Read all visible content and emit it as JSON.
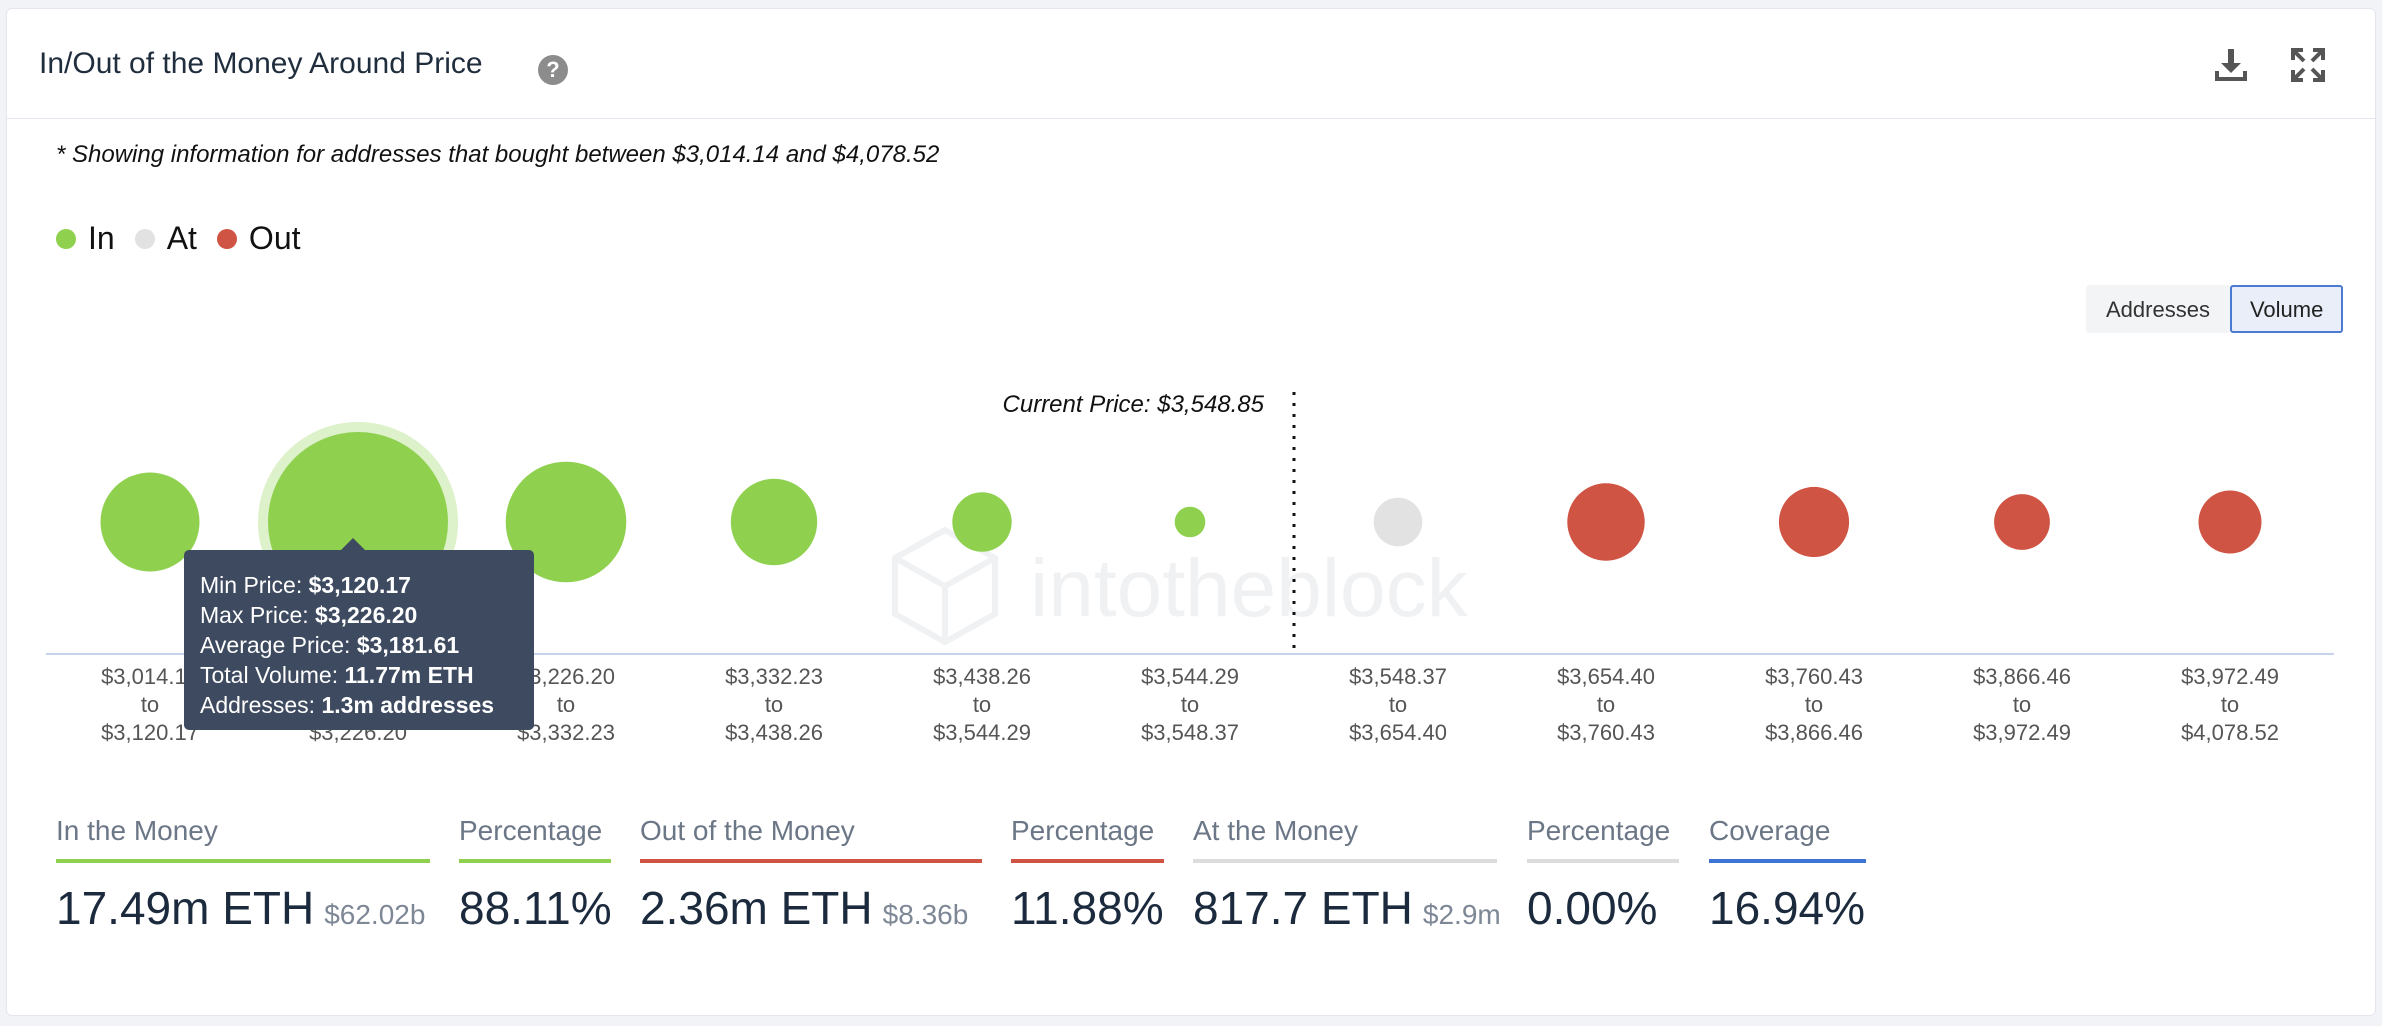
{
  "header": {
    "title": "In/Out of the Money Around Price",
    "help_icon": "question-circle-icon",
    "download_icon": "download-icon",
    "fullscreen_icon": "fullscreen-icon"
  },
  "note": "* Showing information for addresses that bought between $3,014.14 and $4,078.52",
  "legend": [
    {
      "label": "In",
      "color": "#8fd14f"
    },
    {
      "label": "At",
      "color": "#e2e2e2"
    },
    {
      "label": "Out",
      "color": "#cf5443"
    }
  ],
  "toggle": {
    "addresses": "Addresses",
    "volume": "Volume",
    "active": "Volume"
  },
  "watermark": "intotheblock",
  "chart_data": {
    "type": "bubble",
    "current_price_label": "Current Price: $3,548.85",
    "current_price": 3548.85,
    "categories": [
      {
        "from": "$3,014.14",
        "to": "$3,120.17",
        "status": "in",
        "size": 0.55
      },
      {
        "from": "$3,120.17",
        "to": "$3,226.20",
        "status": "in",
        "size": 1.0
      },
      {
        "from": "$3,226.20",
        "to": "$3,332.23",
        "status": "in",
        "size": 0.67
      },
      {
        "from": "$3,332.23",
        "to": "$3,438.26",
        "status": "in",
        "size": 0.48
      },
      {
        "from": "$3,438.26",
        "to": "$3,544.29",
        "status": "in",
        "size": 0.33
      },
      {
        "from": "$3,544.29",
        "to": "$3,548.37",
        "status": "in",
        "size": 0.17
      },
      {
        "from": "$3,548.37",
        "to": "$3,654.40",
        "status": "at",
        "size": 0.27
      },
      {
        "from": "$3,654.40",
        "to": "$3,760.43",
        "status": "out",
        "size": 0.43
      },
      {
        "from": "$3,760.43",
        "to": "$3,866.46",
        "status": "out",
        "size": 0.39
      },
      {
        "from": "$3,866.46",
        "to": "$3,972.49",
        "status": "out",
        "size": 0.31
      },
      {
        "from": "$3,972.49",
        "to": "$4,078.52",
        "status": "out",
        "size": 0.35
      }
    ],
    "to_word": "to",
    "tooltip": {
      "bucket_index": 1,
      "min_label": "Min Price:",
      "min_value": "$3,120.17",
      "max_label": "Max Price:",
      "max_value": "$3,226.20",
      "avg_label": "Average Price:",
      "avg_value": "$3,181.61",
      "vol_label": "Total Volume:",
      "vol_value": "11.77m ETH",
      "addr_label": "Addresses:",
      "addr_value": "1.3m addresses"
    }
  },
  "stats": [
    {
      "label": "In the Money",
      "value": "17.49m ETH",
      "sub": "$62.02b",
      "color": "#8fd14f"
    },
    {
      "label": "Percentage",
      "value": "88.11%",
      "sub": "",
      "color": "#8fd14f"
    },
    {
      "label": "Out of the Money",
      "value": "2.36m ETH",
      "sub": "$8.36b",
      "color": "#cf5443"
    },
    {
      "label": "Percentage",
      "value": "11.88%",
      "sub": "",
      "color": "#cf5443"
    },
    {
      "label": "At the Money",
      "value": "817.7 ETH",
      "sub": "$2.9m",
      "color": "#dcdcdc"
    },
    {
      "label": "Percentage",
      "value": "0.00%",
      "sub": "",
      "color": "#dcdcdc"
    },
    {
      "label": "Coverage",
      "value": "16.94%",
      "sub": "",
      "color": "#3e74d6"
    }
  ]
}
